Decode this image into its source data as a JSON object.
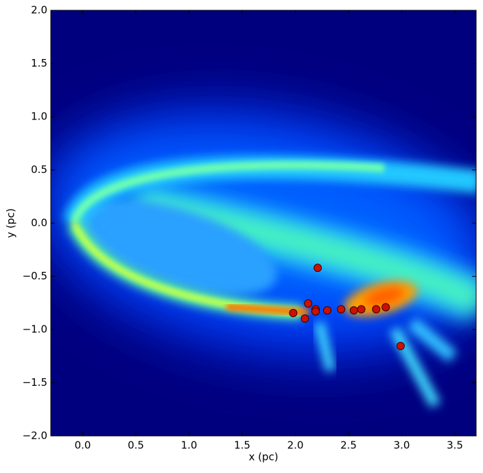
{
  "chart_data": {
    "type": "scatter",
    "x_label": "x (pc)",
    "y_label": "y (pc)",
    "xlim": [
      -0.3,
      3.7
    ],
    "ylim": [
      -2,
      2
    ],
    "xticks": [
      {
        "value": 0,
        "label": "0.0"
      },
      0.5,
      {
        "value": 1,
        "label": "1.0"
      },
      1.5,
      {
        "value": 2,
        "label": "2.0"
      },
      2.5,
      {
        "value": 3,
        "label": "3.0"
      },
      3.5
    ],
    "yticks": [
      {
        "value": -2,
        "label": "−2.0"
      },
      {
        "value": -1.5,
        "label": "−1.5"
      },
      {
        "value": -1,
        "label": "−1.0"
      },
      {
        "value": -0.5,
        "label": "−0.5"
      },
      {
        "value": 0,
        "label": "0.0"
      },
      0.5,
      {
        "value": 1,
        "label": "1.0"
      },
      1.5,
      {
        "value": 2,
        "label": "2.0"
      }
    ],
    "color": "#cc1100",
    "x": [
      1.98,
      2.09,
      2.12,
      2.19,
      2.19,
      2.21,
      2.3,
      2.43,
      2.55,
      2.62,
      2.76,
      2.85,
      2.99
    ],
    "values": [
      -0.845,
      -0.897,
      -0.755,
      -0.81,
      -0.83,
      -0.42,
      -0.82,
      -0.81,
      -0.82,
      -0.81,
      -0.81,
      -0.79,
      -1.155
    ]
  }
}
